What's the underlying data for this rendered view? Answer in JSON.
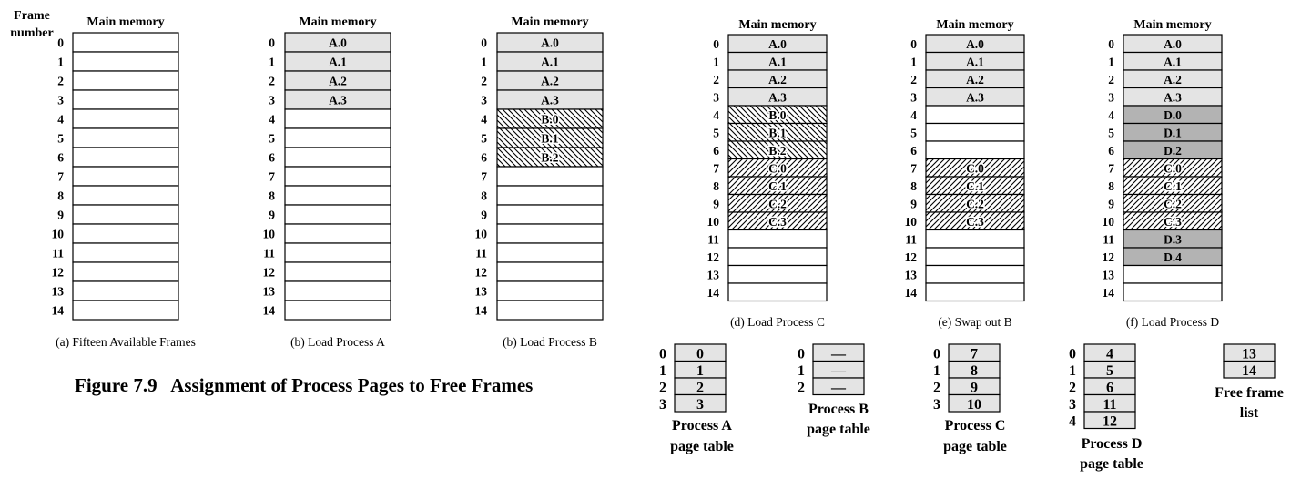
{
  "figure_title": "Figure 7.9   Assignment of Process Pages to Free Frames",
  "frame_number_label": [
    "Frame",
    "number"
  ],
  "memory_header": "Main memory",
  "frame_numbers": [
    "0",
    "1",
    "2",
    "3",
    "4",
    "5",
    "6",
    "7",
    "8",
    "9",
    "10",
    "11",
    "12",
    "13",
    "14"
  ],
  "colors": {
    "process_a": "#e4e4e4",
    "process_d": "#b3b3b3",
    "free": "#ffffff",
    "hatch": "#000000"
  },
  "panels": [
    {
      "caption": "(a) Fifteen Available Frames",
      "frames": [
        "",
        "",
        "",
        "",
        "",
        "",
        "",
        "",
        "",
        "",
        "",
        "",
        "",
        "",
        ""
      ],
      "styles": [
        "free",
        "free",
        "free",
        "free",
        "free",
        "free",
        "free",
        "free",
        "free",
        "free",
        "free",
        "free",
        "free",
        "free",
        "free"
      ]
    },
    {
      "caption": "(b) Load Process A",
      "frames": [
        "A.0",
        "A.1",
        "A.2",
        "A.3",
        "",
        "",
        "",
        "",
        "",
        "",
        "",
        "",
        "",
        "",
        ""
      ],
      "styles": [
        "a",
        "a",
        "a",
        "a",
        "free",
        "free",
        "free",
        "free",
        "free",
        "free",
        "free",
        "free",
        "free",
        "free",
        "free"
      ]
    },
    {
      "caption": "(b) Load Process B",
      "frames": [
        "A.0",
        "A.1",
        "A.2",
        "A.3",
        "B.0",
        "B.1",
        "B.2",
        "",
        "",
        "",
        "",
        "",
        "",
        "",
        ""
      ],
      "styles": [
        "a",
        "a",
        "a",
        "a",
        "b",
        "b",
        "b",
        "free",
        "free",
        "free",
        "free",
        "free",
        "free",
        "free",
        "free"
      ]
    },
    {
      "caption": "(d) Load Process C",
      "frames": [
        "A.0",
        "A.1",
        "A.2",
        "A.3",
        "B.0",
        "B.1",
        "B.2",
        "C.0",
        "C.1",
        "C.2",
        "C.3",
        "",
        "",
        "",
        ""
      ],
      "styles": [
        "a",
        "a",
        "a",
        "a",
        "b",
        "b",
        "b",
        "c",
        "c",
        "c",
        "c",
        "free",
        "free",
        "free",
        "free"
      ]
    },
    {
      "caption": "(e) Swap out B",
      "frames": [
        "A.0",
        "A.1",
        "A.2",
        "A.3",
        "",
        "",
        "",
        "C.0",
        "C.1",
        "C.2",
        "C.3",
        "",
        "",
        "",
        ""
      ],
      "styles": [
        "a",
        "a",
        "a",
        "a",
        "free",
        "free",
        "free",
        "c",
        "c",
        "c",
        "c",
        "free",
        "free",
        "free",
        "free"
      ]
    },
    {
      "caption": "(f) Load Process D",
      "frames": [
        "A.0",
        "A.1",
        "A.2",
        "A.3",
        "D.0",
        "D.1",
        "D.2",
        "C.0",
        "C.1",
        "C.2",
        "C.3",
        "D.3",
        "D.4",
        "",
        ""
      ],
      "styles": [
        "a",
        "a",
        "a",
        "a",
        "d",
        "d",
        "d",
        "c",
        "c",
        "c",
        "c",
        "d",
        "d",
        "free",
        "free"
      ]
    }
  ],
  "page_tables": [
    {
      "title": [
        "Process A",
        "page table"
      ],
      "rows": [
        [
          "0",
          "0"
        ],
        [
          "1",
          "1"
        ],
        [
          "2",
          "2"
        ],
        [
          "3",
          "3"
        ]
      ]
    },
    {
      "title": [
        "Process B",
        "page table"
      ],
      "rows": [
        [
          "0",
          "—"
        ],
        [
          "1",
          "—"
        ],
        [
          "2",
          "—"
        ]
      ]
    },
    {
      "title": [
        "Process C",
        "page table"
      ],
      "rows": [
        [
          "0",
          "7"
        ],
        [
          "1",
          "8"
        ],
        [
          "2",
          "9"
        ],
        [
          "3",
          "10"
        ]
      ]
    },
    {
      "title": [
        "Process D",
        "page table"
      ],
      "rows": [
        [
          "0",
          "4"
        ],
        [
          "1",
          "5"
        ],
        [
          "2",
          "6"
        ],
        [
          "3",
          "11"
        ],
        [
          "4",
          "12"
        ]
      ]
    }
  ],
  "free_frame_list": {
    "title": [
      "Free frame",
      "list"
    ],
    "entries": [
      "13",
      "14"
    ]
  }
}
